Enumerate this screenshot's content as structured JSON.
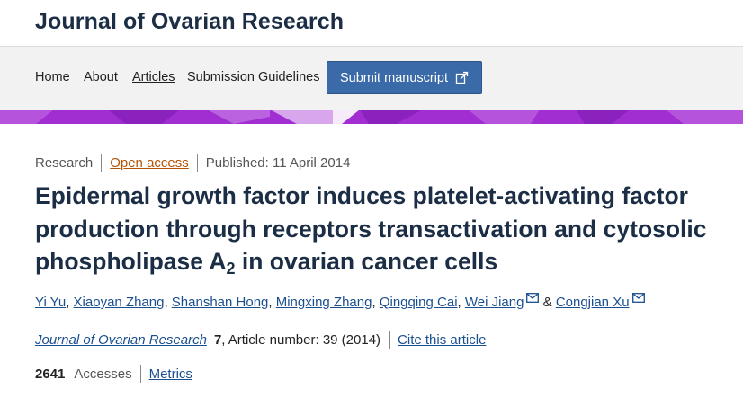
{
  "header": {
    "journal_title": "Journal of Ovarian Research"
  },
  "nav": {
    "items": [
      {
        "label": "Home"
      },
      {
        "label": "About"
      },
      {
        "label": "Articles"
      },
      {
        "label": "Submission Guidelines"
      }
    ],
    "active_item": "Articles",
    "submit_label": "Submit manuscript",
    "submit_icon": "external-link-icon"
  },
  "colors": {
    "title": "#1b2e45",
    "nav_background": "#f2f2f2",
    "submit_button": "#3a6aa8",
    "band": "#a02ed1",
    "open_access": "#b35406",
    "link": "#1a4f8f"
  },
  "article": {
    "type": "Research",
    "access": "Open access",
    "published": "Published: 11 April 2014",
    "title_part1": "Epidermal growth factor induces platelet-activating factor production through receptors transactivation and cytosolic phospholipase A",
    "title_subscript": "2",
    "title_part2": " in ovarian cancer cells",
    "authors": [
      {
        "name": "Yi Yu",
        "email": false
      },
      {
        "name": "Xiaoyan Zhang",
        "email": false
      },
      {
        "name": "Shanshan Hong",
        "email": false
      },
      {
        "name": "Mingxing Zhang",
        "email": false
      },
      {
        "name": "Qingqing Cai",
        "email": false
      },
      {
        "name": "Wei Jiang",
        "email": true
      },
      {
        "name": "Congjian Xu",
        "email": true
      }
    ],
    "author_separator": ", ",
    "author_last_separator": " & ",
    "email_icon": "envelope-icon",
    "citation": {
      "journal": "Journal of Ovarian Research",
      "volume": "7",
      "rest": ", Article number: 39 (2014)",
      "cite_label": "Cite this article"
    },
    "accesses": {
      "count": "2641",
      "label": "Accesses",
      "metrics_label": "Metrics"
    }
  }
}
